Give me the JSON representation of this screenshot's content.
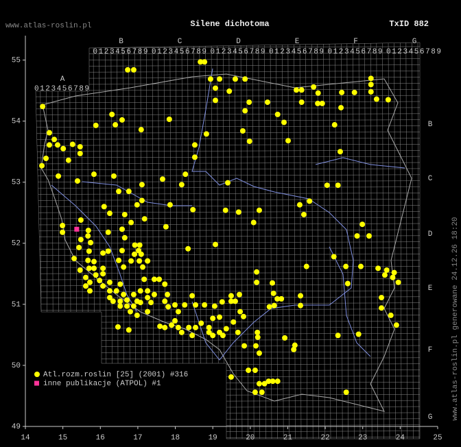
{
  "header": {
    "site": "www.atlas-roslin.pl",
    "taxon": "Silene dichotoma",
    "taxon_id": "TxID 882"
  },
  "side_note": "www.atlas-roslin.pl generowane 24.12.26 18:20",
  "atpol": {
    "column_letters": [
      "A",
      "B",
      "C",
      "D",
      "E",
      "F",
      "G"
    ],
    "row_letters": [
      "B",
      "C",
      "D",
      "E",
      "F",
      "G"
    ],
    "digits": "0123456789"
  },
  "chart_data": {
    "type": "scatter",
    "xlim": [
      14,
      25
    ],
    "ylim": [
      49,
      55.4
    ],
    "xticks": [
      14,
      15,
      16,
      17,
      18,
      19,
      20,
      21,
      22,
      23,
      24,
      25
    ],
    "yticks": [
      49,
      50,
      51,
      52,
      53,
      54,
      55
    ],
    "series": [
      {
        "name": "Atl.rozm.roslin [25] (2001) #316",
        "color": "#ffff00",
        "marker": "circle",
        "x": [
          14.46,
          16.73,
          16.89,
          18.67,
          18.78,
          18.94,
          19.18,
          19.6,
          19.86,
          19.07,
          19.07,
          19.44,
          19.86,
          19.97,
          20.46,
          20.73,
          20.9,
          21.23,
          21.37,
          21.37,
          21.69,
          21.81,
          21.8,
          21.92,
          22.44,
          22.78,
          23.22,
          23.22,
          23.22,
          23.37,
          23.68,
          22.25,
          22.42,
          16.31,
          16.4,
          16.58,
          15.88,
          17.09,
          17.84,
          14.64,
          14.77,
          14.64,
          14.86,
          15.01,
          15.26,
          15.46,
          15.46,
          15.15,
          14.55,
          14.44,
          14.88,
          15.39,
          15.83,
          16.36,
          16.49,
          17.11,
          17.66,
          18.27,
          18.17,
          18.52,
          18.52,
          18.83,
          19.4,
          19.8,
          19.98,
          21.01,
          22.4,
          22.05,
          22.34,
          17.11,
          16.76,
          16.1,
          16.25,
          16.65,
          16.98,
          17.18,
          17.75,
          17.86,
          18.47,
          19.34,
          19.69,
          20.24,
          20.09,
          21.32,
          21.58,
          21.43,
          22.99,
          22.85,
          23.17,
          14.99,
          14.99,
          15.48,
          15.68,
          15.67,
          15.48,
          15.74,
          16.21,
          16.58,
          16.82,
          16.65,
          16.92,
          17.05,
          17.02,
          16.91,
          17.09,
          16.82,
          17.04,
          17.26,
          17.13,
          16.58,
          16.49,
          16.62,
          15.43,
          15.7,
          15.3,
          15.67,
          15.83,
          16.07,
          16.21,
          18.34,
          19.07,
          21.5,
          22.23,
          22.55,
          22.95,
          23.41,
          23.64,
          23.59,
          23.84,
          23.8,
          23.95,
          23.5,
          23.5,
          23.75,
          23.9,
          22.6,
          20.17,
          20.59,
          20.17,
          19.49,
          19.6,
          19.71,
          19.49,
          20.51,
          20.62,
          20.72,
          20.83,
          20.64,
          21.34,
          21.34,
          15.46,
          15.7,
          15.83,
          16.07,
          15.88,
          15.61,
          15.72,
          15.61,
          15.72,
          16.07,
          15.98,
          16.07,
          16.25,
          16.25,
          16.43,
          16.53,
          16.62,
          16.25,
          16.34,
          16.53,
          16.71,
          16.53,
          16.71,
          16.89,
          17.07,
          17.26,
          17.44,
          17.26,
          17.07,
          16.89,
          16.98,
          17.35,
          17.26,
          16.98,
          16.8,
          17.17,
          17.44,
          17.57,
          17.72,
          17.79,
          17.72,
          17.81,
          17.99,
          18.25,
          18.54,
          18.78,
          19.05,
          19.25,
          18.45,
          18.08,
          17.99,
          17.9,
          17.72,
          17.59,
          18.08,
          18.17,
          18.36,
          18.54,
          18.45,
          18.69,
          18.9,
          18.9,
          19.0,
          19.18,
          19.36,
          19.18,
          19.0,
          19.27,
          19.55,
          19.67,
          19.73,
          19.82,
          20.19,
          20.2,
          19.84,
          20.15,
          20.24,
          20.92,
          21.19,
          21.16,
          22.34,
          22.89,
          19.49,
          19.95,
          20.13,
          20.24,
          20.13,
          20.31,
          20.38,
          20.49,
          20.6,
          20.73,
          22.56,
          16.76,
          16.47
        ],
        "y": [
          54.24,
          54.84,
          54.84,
          54.97,
          54.97,
          54.69,
          54.69,
          54.69,
          54.69,
          54.54,
          54.34,
          54.49,
          54.17,
          54.31,
          54.31,
          54.11,
          53.98,
          54.51,
          54.51,
          54.31,
          54.56,
          54.46,
          54.29,
          54.29,
          54.47,
          54.47,
          54.7,
          54.6,
          54.48,
          54.36,
          54.35,
          53.94,
          54.22,
          54.11,
          53.94,
          54.02,
          53.93,
          53.86,
          54.03,
          53.81,
          53.7,
          53.61,
          53.61,
          53.55,
          53.62,
          53.58,
          53.47,
          53.36,
          53.39,
          53.27,
          53.1,
          53.02,
          53.13,
          53.1,
          52.85,
          52.96,
          53.05,
          53.13,
          52.96,
          53.41,
          53.61,
          53.79,
          52.99,
          53.84,
          53.67,
          53.68,
          53.5,
          52.95,
          52.95,
          52.7,
          52.85,
          52.6,
          52.49,
          52.47,
          52.63,
          52.4,
          52.27,
          52.63,
          52.55,
          52.54,
          52.51,
          52.54,
          52.34,
          52.63,
          52.69,
          52.47,
          52.31,
          52.12,
          52.12,
          52.29,
          52.18,
          52.38,
          52.21,
          52.12,
          52.06,
          52.01,
          52.18,
          52.23,
          52.34,
          52.09,
          51.97,
          51.97,
          51.88,
          51.82,
          51.82,
          51.71,
          51.71,
          51.71,
          51.61,
          51.88,
          51.72,
          51.61,
          51.93,
          51.87,
          51.75,
          51.72,
          51.7,
          51.84,
          51.87,
          51.91,
          51.98,
          51.62,
          51.78,
          51.62,
          51.62,
          51.59,
          51.56,
          51.48,
          51.52,
          51.44,
          51.36,
          51.11,
          50.94,
          50.82,
          50.66,
          51.34,
          51.53,
          51.35,
          51.36,
          51.14,
          51.05,
          51.16,
          51.05,
          50.96,
          51.18,
          51.09,
          51.09,
          50.98,
          51.14,
          50.98,
          51.56,
          51.59,
          51.59,
          51.59,
          51.48,
          51.44,
          51.36,
          51.3,
          51.22,
          51.5,
          51.39,
          51.3,
          51.36,
          51.22,
          51.22,
          51.33,
          51.16,
          51.11,
          51.05,
          51.05,
          51.07,
          50.97,
          50.97,
          50.97,
          51.03,
          51.11,
          51.16,
          51.22,
          51.22,
          51.16,
          51.05,
          51.03,
          50.88,
          50.82,
          50.88,
          51.41,
          51.41,
          51.41,
          51.33,
          51.16,
          51.05,
          50.96,
          50.99,
          50.99,
          50.99,
          50.99,
          50.97,
          51.04,
          51.14,
          50.88,
          50.73,
          50.66,
          50.62,
          50.64,
          50.62,
          50.54,
          50.62,
          50.62,
          50.49,
          50.69,
          50.62,
          50.54,
          50.77,
          50.79,
          50.6,
          50.54,
          50.49,
          50.49,
          50.71,
          50.54,
          50.88,
          50.8,
          50.54,
          50.46,
          50.32,
          50.32,
          50.2,
          50.45,
          50.33,
          50.26,
          50.49,
          50.51,
          49.81,
          49.92,
          49.92,
          49.7,
          49.56,
          49.56,
          49.7,
          49.74,
          49.74,
          49.74,
          49.56,
          50.58,
          50.63
        ]
      },
      {
        "name": "inne publikacje (ATPOL) #1",
        "color": "#ff3399",
        "marker": "square",
        "x": [
          15.37
        ],
        "y": [
          52.23
        ]
      }
    ]
  }
}
